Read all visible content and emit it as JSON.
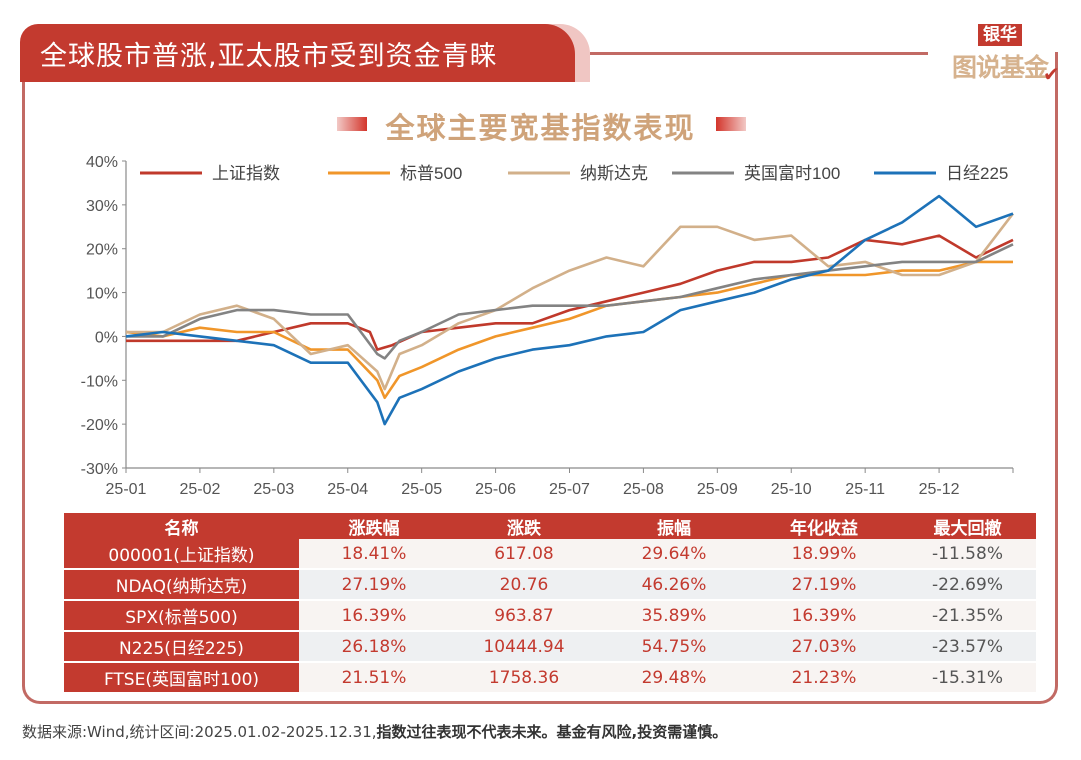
{
  "header": {
    "title": "全球股市普涨,亚太股市受到资金青睐",
    "logo_top": "银华",
    "logo_bottom": "图说基金"
  },
  "chart_data": {
    "type": "line",
    "title": "全球主要宽基指数表现",
    "xlabel": "",
    "ylabel": "",
    "ylim": [
      -30,
      40
    ],
    "yticks": [
      -30,
      -20,
      -10,
      0,
      10,
      20,
      30,
      40
    ],
    "ytick_labels": [
      "-30%",
      "-20%",
      "-10%",
      "0%",
      "10%",
      "20%",
      "30%",
      "40%"
    ],
    "xtick_labels": [
      "25-01",
      "25-02",
      "25-03",
      "25-04",
      "25-05",
      "25-06",
      "25-07",
      "25-08",
      "25-09",
      "25-10",
      "25-11",
      "25-12"
    ],
    "x_unit": "months since 2025-01-02",
    "xlim": [
      0,
      12
    ],
    "grid": false,
    "legend_position": "top",
    "series": [
      {
        "name": "上证指数",
        "color": "#c0392b",
        "x": [
          0,
          0.5,
          1,
          1.5,
          2,
          2.5,
          3,
          3.3,
          3.4,
          3.6,
          4,
          4.5,
          5,
          5.5,
          6,
          6.5,
          7,
          7.5,
          8,
          8.5,
          9,
          9.5,
          10,
          10.5,
          11,
          11.5,
          12
        ],
        "values": [
          -1,
          -1,
          -1,
          -1,
          1,
          3,
          3,
          1,
          -3,
          -2,
          1,
          2,
          3,
          3,
          6,
          8,
          10,
          12,
          15,
          17,
          17,
          18,
          22,
          21,
          23,
          18,
          22
        ]
      },
      {
        "name": "标普500",
        "color": "#f0962a",
        "x": [
          0,
          0.5,
          1,
          1.5,
          2,
          2.5,
          3,
          3.4,
          3.5,
          3.7,
          4,
          4.5,
          5,
          5.5,
          6,
          6.5,
          7,
          7.5,
          8,
          8.5,
          9,
          9.5,
          10,
          10.5,
          11,
          11.5,
          12
        ],
        "values": [
          1,
          0,
          2,
          1,
          1,
          -3,
          -3,
          -10,
          -14,
          -9,
          -7,
          -3,
          0,
          2,
          4,
          7,
          8,
          9,
          10,
          12,
          14,
          14,
          14,
          15,
          15,
          17,
          17
        ]
      },
      {
        "name": "纳斯达克",
        "color": "#d2b08a",
        "x": [
          0,
          0.5,
          1,
          1.5,
          2,
          2.5,
          3,
          3.4,
          3.5,
          3.7,
          4,
          4.5,
          5,
          5.5,
          6,
          6.5,
          7,
          7.5,
          8,
          8.5,
          9,
          9.5,
          10,
          10.5,
          11,
          11.5,
          12
        ],
        "values": [
          1,
          1,
          5,
          7,
          4,
          -4,
          -2,
          -8,
          -12,
          -4,
          -2,
          3,
          6,
          11,
          15,
          18,
          16,
          25,
          25,
          22,
          23,
          16,
          17,
          14,
          14,
          17,
          28
        ]
      },
      {
        "name": "英国富时100",
        "color": "#838383",
        "x": [
          0,
          0.5,
          1,
          1.5,
          2,
          2.5,
          3,
          3.4,
          3.5,
          3.7,
          4,
          4.5,
          5,
          5.5,
          6,
          6.5,
          7,
          7.5,
          8,
          8.5,
          9,
          9.5,
          10,
          10.5,
          11,
          11.5,
          12
        ],
        "values": [
          0,
          0,
          4,
          6,
          6,
          5,
          5,
          -4,
          -5,
          -1,
          1,
          5,
          6,
          7,
          7,
          7,
          8,
          9,
          11,
          13,
          14,
          15,
          16,
          17,
          17,
          17,
          21
        ]
      },
      {
        "name": "日经225",
        "color": "#1d72b8",
        "x": [
          0,
          0.5,
          1,
          1.5,
          2,
          2.5,
          3,
          3.4,
          3.5,
          3.7,
          4,
          4.5,
          5,
          5.5,
          6,
          6.5,
          7,
          7.5,
          8,
          8.5,
          9,
          9.5,
          10,
          10.5,
          11,
          11.5,
          12
        ],
        "values": [
          0,
          1,
          0,
          -1,
          -2,
          -6,
          -6,
          -15,
          -20,
          -14,
          -12,
          -8,
          -5,
          -3,
          -2,
          0,
          1,
          6,
          8,
          10,
          13,
          15,
          22,
          26,
          32,
          25,
          28
        ]
      }
    ]
  },
  "table": {
    "headers": [
      "名称",
      "涨跌幅",
      "涨跌",
      "振幅",
      "年化收益",
      "最大回撤"
    ],
    "rows": [
      [
        "000001(上证指数)",
        "18.41%",
        "617.08",
        "29.64%",
        "18.99%",
        "-11.58%"
      ],
      [
        "NDAQ(纳斯达克)",
        "27.19%",
        "20.76",
        "46.26%",
        "27.19%",
        "-22.69%"
      ],
      [
        "SPX(标普500)",
        "16.39%",
        "963.87",
        "35.89%",
        "16.39%",
        "-21.35%"
      ],
      [
        "N225(日经225)",
        "26.18%",
        "10444.94",
        "54.75%",
        "27.03%",
        "-23.57%"
      ],
      [
        "FTSE(英国富时100)",
        "21.51%",
        "1758.36",
        "29.48%",
        "21.23%",
        "-15.31%"
      ]
    ]
  },
  "footnote": {
    "source": "数据来源:Wind,统计区间:2025.01.02-2025.12.31,",
    "disclaimer": "指数过往表现不代表未来。基金有风险,投资需谨慎。"
  }
}
